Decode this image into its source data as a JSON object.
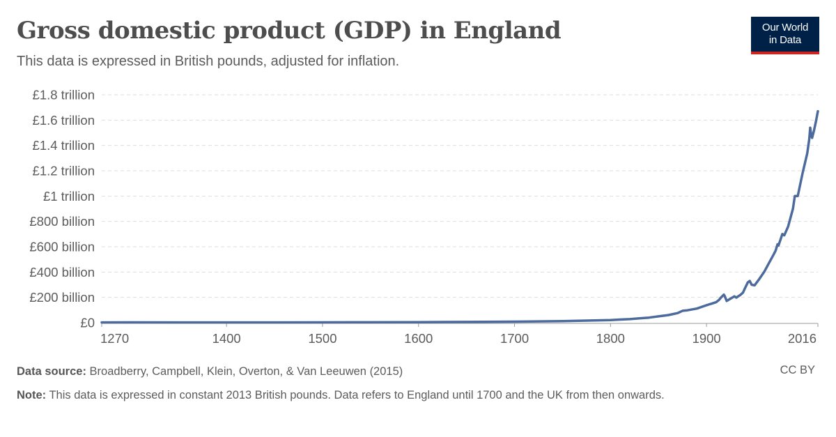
{
  "header": {
    "title": "Gross domestic product (GDP) in England",
    "subtitle": "This data is expressed in British pounds, adjusted for inflation."
  },
  "logo": {
    "line1": "Our World",
    "line2": "in Data",
    "bg_color": "#002147",
    "accent_color": "#ce261e"
  },
  "footer": {
    "source_label": "Data source:",
    "source_text": "Broadberry, Campbell, Klein, Overton, & Van Leeuwen (2015)",
    "license": "CC BY",
    "note_label": "Note:",
    "note_text": "This data is expressed in constant 2013 British pounds. Data refers to England until 1700 and the UK from then onwards."
  },
  "chart_data": {
    "type": "line",
    "title": "Gross domestic product (GDP) in England",
    "subtitle": "This data is expressed in British pounds, adjusted for inflation.",
    "xlim": [
      1270,
      2016
    ],
    "ylim": [
      0,
      1800000000000
    ],
    "x_ticks": [
      1270,
      1400,
      1500,
      1600,
      1700,
      1800,
      1900,
      2016
    ],
    "y_ticks": [
      {
        "value": 0,
        "label": "£0"
      },
      {
        "value": 200000000000,
        "label": "£200 billion"
      },
      {
        "value": 400000000000,
        "label": "£400 billion"
      },
      {
        "value": 600000000000,
        "label": "£600 billion"
      },
      {
        "value": 800000000000,
        "label": "£800 billion"
      },
      {
        "value": 1000000000000,
        "label": "£1 trillion"
      },
      {
        "value": 1200000000000,
        "label": "£1.2 trillion"
      },
      {
        "value": 1400000000000,
        "label": "£1.4 trillion"
      },
      {
        "value": 1600000000000,
        "label": "£1.6 trillion"
      },
      {
        "value": 1800000000000,
        "label": "£1.8 trillion"
      }
    ],
    "grid": true,
    "line_color": "#4c6a9c",
    "series": [
      {
        "x": [
          1270,
          1300,
          1350,
          1400,
          1450,
          1500,
          1550,
          1600,
          1650,
          1700,
          1750,
          1800,
          1810,
          1820,
          1830,
          1840,
          1850,
          1860,
          1870,
          1875,
          1880,
          1890,
          1900,
          1905,
          1910,
          1913,
          1915,
          1918,
          1919,
          1921,
          1925,
          1929,
          1931,
          1935,
          1938,
          1940,
          1943,
          1945,
          1947,
          1950,
          1955,
          1960,
          1965,
          1970,
          1972,
          1974,
          1975,
          1979,
          1981,
          1985,
          1990,
          1992,
          1995,
          2000,
          2005,
          2007,
          2008,
          2009,
          2010,
          2012,
          2014,
          2016
        ],
        "y": [
          2000000000,
          2500000000,
          2000000000,
          2000000000,
          2200000000,
          2800000000,
          3500000000,
          4500000000,
          6000000000,
          8000000000,
          12000000000,
          21000000000,
          25000000000,
          28000000000,
          34000000000,
          40000000000,
          50000000000,
          60000000000,
          76000000000,
          94000000000,
          98000000000,
          112000000000,
          138000000000,
          150000000000,
          162000000000,
          180000000000,
          198000000000,
          222000000000,
          210000000000,
          172000000000,
          190000000000,
          208000000000,
          198000000000,
          218000000000,
          238000000000,
          272000000000,
          318000000000,
          330000000000,
          300000000000,
          295000000000,
          345000000000,
          400000000000,
          470000000000,
          540000000000,
          570000000000,
          620000000000,
          610000000000,
          700000000000,
          690000000000,
          760000000000,
          900000000000,
          1000000000000,
          1000000000000,
          1180000000000,
          1340000000000,
          1450000000000,
          1540000000000,
          1480000000000,
          1460000000000,
          1520000000000,
          1590000000000,
          1670000000000
        ]
      }
    ]
  }
}
